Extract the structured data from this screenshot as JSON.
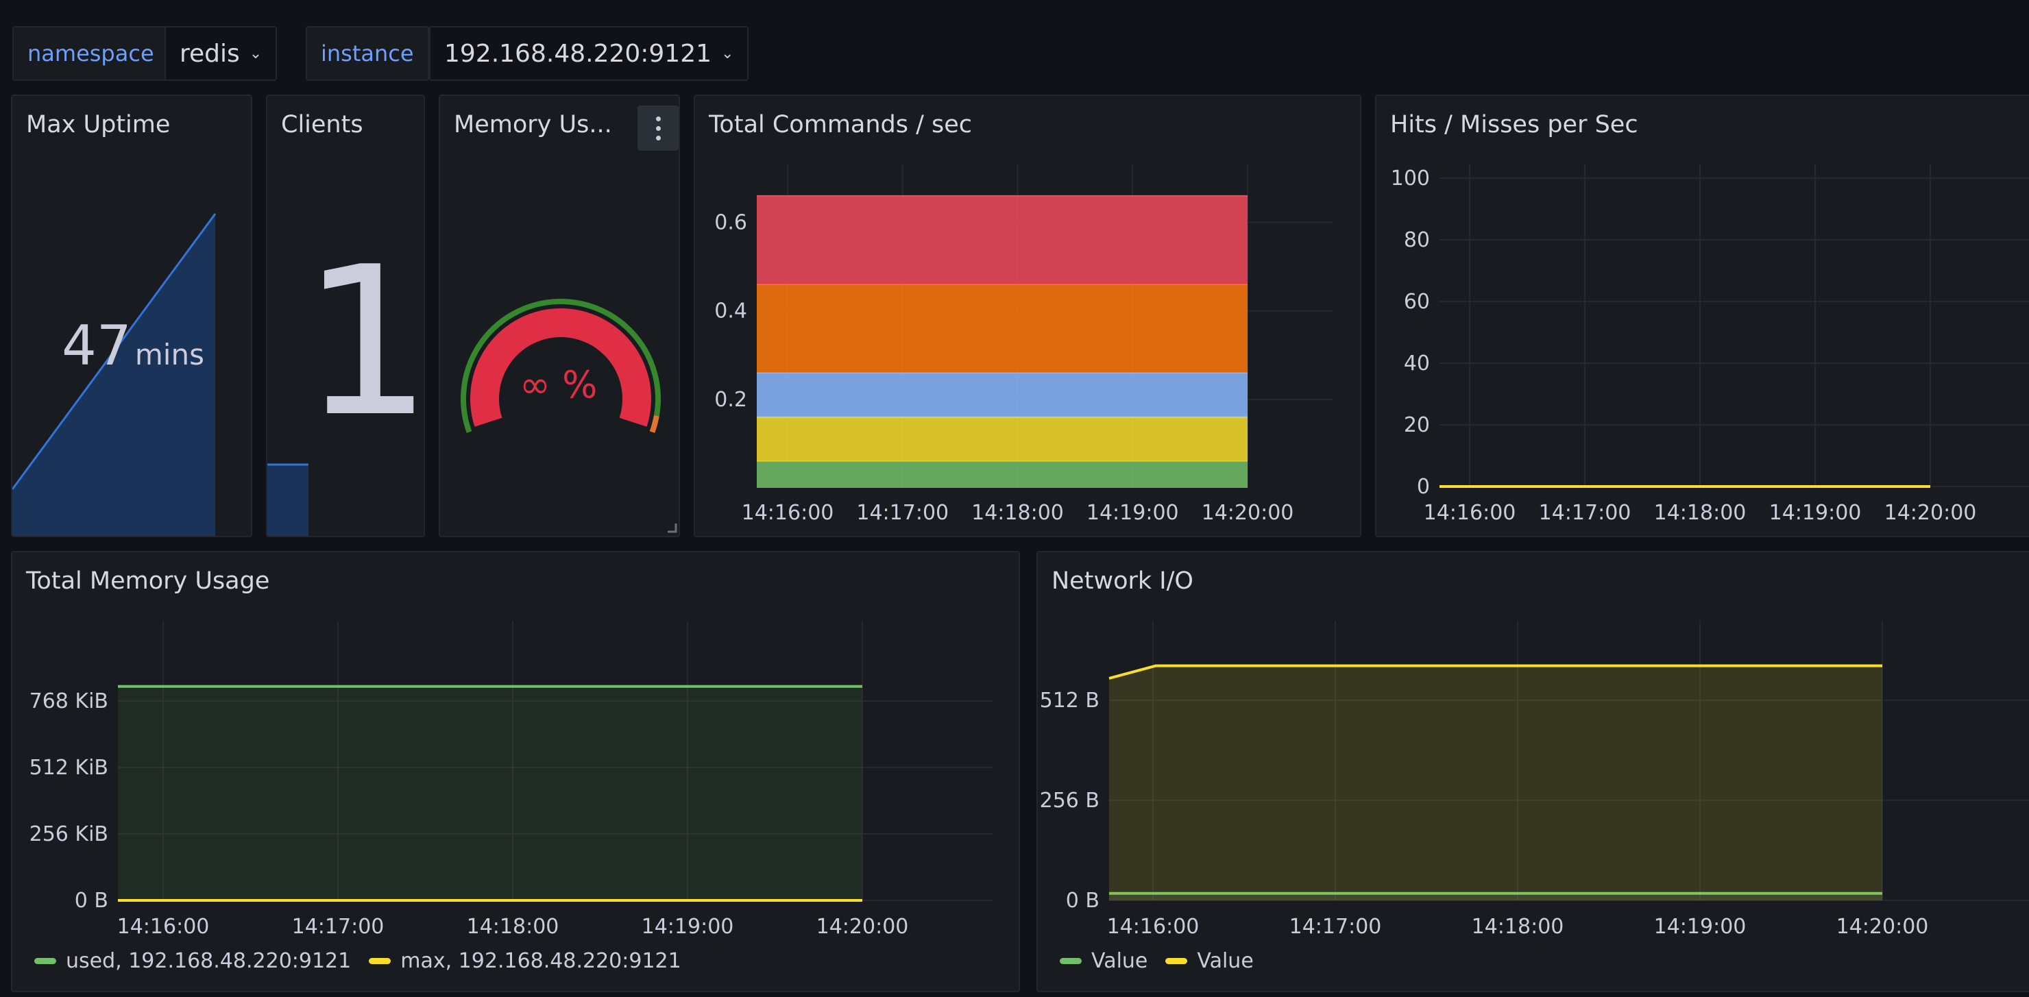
{
  "variables": {
    "namespace": {
      "label": "namespace",
      "value": "redis"
    },
    "instance": {
      "label": "instance",
      "value": "192.168.48.220:9121"
    }
  },
  "panels": {
    "max_uptime": {
      "title": "Max Uptime",
      "value": "47",
      "unit": "mins",
      "color": "#1f60c4"
    },
    "clients": {
      "title": "Clients",
      "value": "1"
    },
    "memory_usage": {
      "title": "Memory Us...",
      "value": "∞",
      "unit": "%",
      "color": "#e02f44"
    },
    "total_commands": {
      "title": "Total Commands / sec"
    },
    "hits_misses": {
      "title": "Hits / Misses per Sec"
    },
    "total_memory": {
      "title": "Total Memory Usage"
    },
    "network_io": {
      "title": "Network I/O"
    }
  },
  "chart_data": [
    {
      "panel": "total_commands",
      "type": "area",
      "stacked": true,
      "x": [
        "14:16:00",
        "14:17:00",
        "14:18:00",
        "14:19:00",
        "14:20:00"
      ],
      "ylim": [
        0,
        0.7
      ],
      "yticks": [
        "0.2",
        "0.4",
        "0.6"
      ],
      "series": [
        {
          "value": 0.06,
          "color": "#73bf69"
        },
        {
          "value": 0.1,
          "color": "#fade2a"
        },
        {
          "value": 0.1,
          "color": "#8ab8ff"
        },
        {
          "value": 0.2,
          "color": "#ff780a"
        },
        {
          "value": 0.2,
          "color": "#f2495c"
        }
      ]
    },
    {
      "panel": "hits_misses",
      "type": "line",
      "x": [
        "14:16:00",
        "14:17:00",
        "14:18:00",
        "14:19:00",
        "14:20:00"
      ],
      "ylim": [
        0,
        100
      ],
      "yticks": [
        "0",
        "20",
        "40",
        "60",
        "80",
        "100"
      ],
      "series": [
        {
          "value": 0,
          "color": "#fade2a"
        }
      ]
    },
    {
      "panel": "total_memory",
      "type": "line",
      "x": [
        "14:16:00",
        "14:17:00",
        "14:18:00",
        "14:19:00",
        "14:20:00"
      ],
      "ylim": [
        0,
        1024
      ],
      "yticks": [
        "0 B",
        "256 KiB",
        "512 KiB",
        "768 KiB"
      ],
      "series": [
        {
          "name": "used, 192.168.48.220:9121",
          "value": 824,
          "color": "#73bf69"
        },
        {
          "name": "max, 192.168.48.220:9121",
          "value": 0,
          "color": "#fade2a"
        }
      ]
    },
    {
      "panel": "network_io",
      "type": "line",
      "x": [
        "14:16:00",
        "14:17:00",
        "14:18:00",
        "14:19:00",
        "14:20:00"
      ],
      "ylim": [
        0,
        680
      ],
      "yticks": [
        "0 B",
        "256 B",
        "512 B"
      ],
      "series": [
        {
          "name": "Value",
          "value": 18,
          "color": "#73bf69"
        },
        {
          "name": "Value",
          "value": 600,
          "color": "#fade2a"
        }
      ]
    }
  ]
}
